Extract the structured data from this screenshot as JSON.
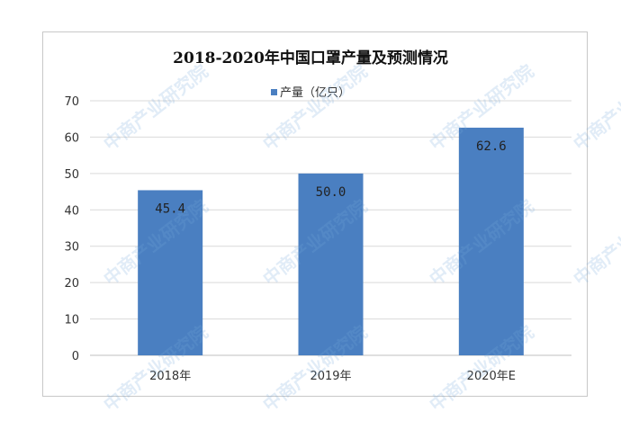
{
  "chart_data": {
    "type": "bar",
    "title": "2018-2020年中国口罩产量及预测情况",
    "legend": "产量（亿只）",
    "categories": [
      "2018年",
      "2019年",
      "2020年E"
    ],
    "series": [
      {
        "name": "产量（亿只）",
        "values": [
          45.4,
          50.0,
          62.6
        ],
        "labels": [
          "45.4",
          "50.0",
          "62.6"
        ]
      }
    ],
    "ylim": [
      0,
      70
    ],
    "yticks": [
      0,
      10,
      20,
      30,
      40,
      50,
      60,
      70
    ],
    "grid": true,
    "legend_position": "top-center",
    "colors": {
      "bar": "#4a7fc1",
      "grid": "#d9d9d9"
    }
  },
  "watermark": "中商产业研究院"
}
